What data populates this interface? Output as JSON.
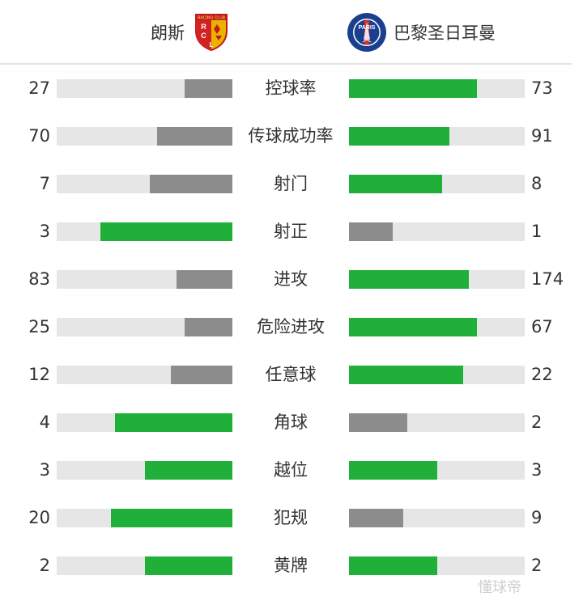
{
  "header": {
    "home": {
      "name": "朗斯",
      "logo_text": "RCL"
    },
    "away": {
      "name": "巴黎圣日耳曼",
      "logo_text": "PARIS"
    }
  },
  "colors": {
    "win": "#20b03a",
    "lose": "#8c8c8c",
    "track": "#e6e6e6"
  },
  "stats": [
    {
      "label": "控球率",
      "home": "27",
      "away": "73",
      "home_frac": 0.27,
      "away_frac": 0.73,
      "home_color": "lose",
      "away_color": "win"
    },
    {
      "label": "传球成功率",
      "home": "70",
      "away": "91",
      "home_frac": 0.43,
      "away_frac": 0.57,
      "home_color": "lose",
      "away_color": "win"
    },
    {
      "label": "射门",
      "home": "7",
      "away": "8",
      "home_frac": 0.47,
      "away_frac": 0.53,
      "home_color": "lose",
      "away_color": "win"
    },
    {
      "label": "射正",
      "home": "3",
      "away": "1",
      "home_frac": 0.75,
      "away_frac": 0.25,
      "home_color": "win",
      "away_color": "lose"
    },
    {
      "label": "进攻",
      "home": "83",
      "away": "174",
      "home_frac": 0.32,
      "away_frac": 0.68,
      "home_color": "lose",
      "away_color": "win"
    },
    {
      "label": "危险进攻",
      "home": "25",
      "away": "67",
      "home_frac": 0.27,
      "away_frac": 0.73,
      "home_color": "lose",
      "away_color": "win"
    },
    {
      "label": "任意球",
      "home": "12",
      "away": "22",
      "home_frac": 0.35,
      "away_frac": 0.65,
      "home_color": "lose",
      "away_color": "win"
    },
    {
      "label": "角球",
      "home": "4",
      "away": "2",
      "home_frac": 0.67,
      "away_frac": 0.33,
      "home_color": "win",
      "away_color": "lose"
    },
    {
      "label": "越位",
      "home": "3",
      "away": "3",
      "home_frac": 0.5,
      "away_frac": 0.5,
      "home_color": "win",
      "away_color": "win"
    },
    {
      "label": "犯规",
      "home": "20",
      "away": "9",
      "home_frac": 0.69,
      "away_frac": 0.31,
      "home_color": "win",
      "away_color": "lose"
    },
    {
      "label": "黄牌",
      "home": "2",
      "away": "2",
      "home_frac": 0.5,
      "away_frac": 0.5,
      "home_color": "win",
      "away_color": "win"
    }
  ],
  "watermark": "懂球帝"
}
